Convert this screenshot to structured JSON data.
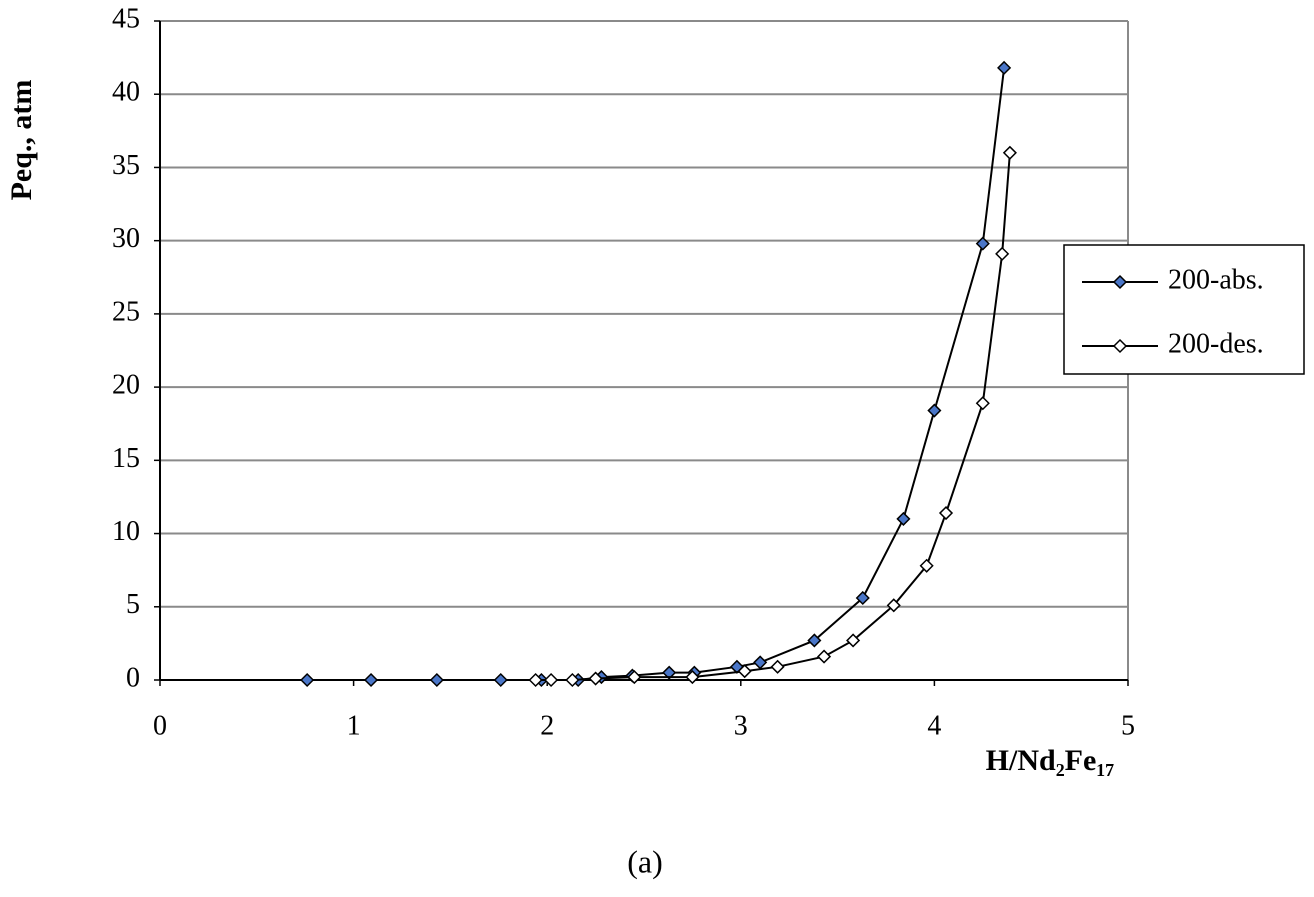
{
  "chart_data": {
    "type": "line",
    "y_label": "Peq., atm",
    "x_label": "H/Nd₂Fe₁₇",
    "caption": "(a)",
    "xlim": [
      0,
      5
    ],
    "xticks": [
      0,
      1,
      2,
      3,
      4,
      5
    ],
    "ylim": [
      0,
      45
    ],
    "yticks": [
      0,
      5,
      10,
      15,
      20,
      25,
      30,
      35,
      40,
      45
    ],
    "grid": true,
    "legend": "right",
    "series": [
      {
        "name": "200-abs.",
        "color": "#4a76c8",
        "x": [
          0.76,
          1.09,
          1.43,
          1.76,
          1.97,
          2.16,
          2.28,
          2.44,
          2.63,
          2.76,
          2.98,
          3.1,
          3.38,
          3.63,
          3.84,
          4.0,
          4.25,
          4.36
        ],
        "values": [
          0,
          0,
          0,
          0,
          0,
          0,
          0.2,
          0.3,
          0.5,
          0.5,
          0.9,
          1.2,
          2.7,
          5.6,
          11.0,
          18.4,
          29.8,
          41.8
        ]
      },
      {
        "name": "200-des.",
        "color": "#ffffff",
        "x": [
          1.94,
          2.02,
          2.13,
          2.25,
          2.45,
          2.75,
          3.02,
          3.19,
          3.43,
          3.58,
          3.79,
          3.96,
          4.06,
          4.25,
          4.35,
          4.39
        ],
        "values": [
          0,
          0,
          0,
          0.1,
          0.2,
          0.2,
          0.6,
          0.9,
          1.6,
          2.7,
          5.1,
          7.8,
          11.4,
          18.9,
          29.1,
          36.0
        ]
      }
    ]
  }
}
